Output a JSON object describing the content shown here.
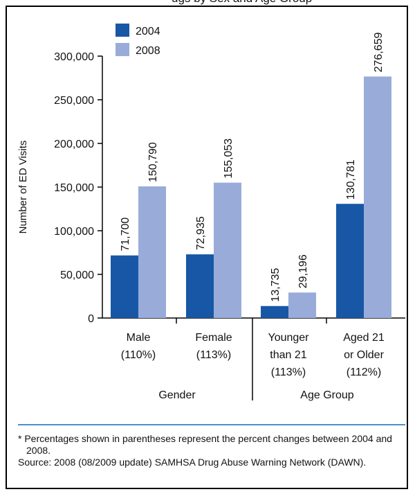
{
  "clipped_header": "ugs by Sex and Age Group",
  "chart_data": {
    "type": "bar",
    "title": "",
    "xlabel": "",
    "ylabel": "Number of ED Visits",
    "ylim": [
      0,
      300000
    ],
    "yticks": [
      "0",
      "50,000",
      "100,000",
      "150,000",
      "200,000",
      "250,000",
      "300,000"
    ],
    "ytick_values": [
      0,
      50000,
      100000,
      150000,
      200000,
      250000,
      300000
    ],
    "legend_position": "top-left",
    "grid": false,
    "categories": [
      [
        "Male",
        "(110%)"
      ],
      [
        "Female",
        "(113%)"
      ],
      [
        "Younger",
        "than 21",
        "(113%)"
      ],
      [
        "Aged 21",
        "or Older",
        "(112%)"
      ]
    ],
    "groups": [
      {
        "label": "Gender",
        "categories": [
          0,
          1
        ]
      },
      {
        "label": "Age Group",
        "categories": [
          2,
          3
        ]
      }
    ],
    "series": [
      {
        "name": "2004",
        "color": "#1757a6",
        "values": [
          71700,
          72935,
          13735,
          130781
        ],
        "labels": [
          "71,700",
          "72,935",
          "13,735",
          "130,781"
        ]
      },
      {
        "name": "2008",
        "color": "#99acd9",
        "values": [
          150790,
          155053,
          29196,
          276659
        ],
        "labels": [
          "150,790",
          "155,053",
          "29,196",
          "276,659"
        ]
      }
    ]
  },
  "footnotes": [
    "* Percentages shown in parentheses represent the percent changes between 2004 and 2008.",
    "Source: 2008 (08/2009 update) SAMHSA Drug Abuse Warning Network (DAWN)."
  ]
}
